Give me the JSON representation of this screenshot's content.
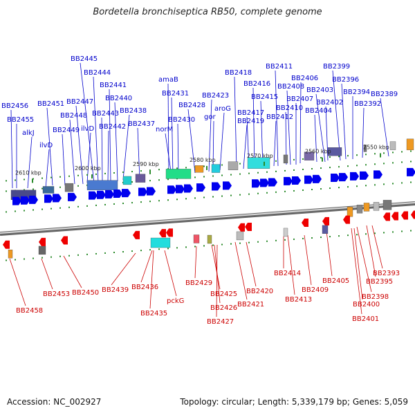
{
  "title": "Bordetella bronchiseptica RB50, complete genome",
  "footer": {
    "accession": "Accession: NC_002927",
    "topology": "Topology: circular; Length: 5,339,179 bp; Genes: 5,059"
  },
  "colors": {
    "top_strand_label": "#0000cc",
    "bottom_strand_label": "#cc0000",
    "top_arrow": "#0000ee",
    "bottom_arrow": "#ee0000",
    "tick": "#2a8a2a",
    "backbone": "#999999"
  },
  "position_markers": [
    "2610 kbp",
    "2600 kbp",
    "2590 kbp",
    "2580 kbp",
    "2570 kbp",
    "2560 kbp",
    "2550 kbp"
  ],
  "top_genes": [
    "BB2456",
    "BB2455",
    "alkJ",
    "ilvD",
    "BB2451",
    "BB2449",
    "BB2448",
    "BB2447",
    "BB2445",
    "BB2444",
    "ilvD",
    "BB2443",
    "BB2442",
    "BB2441",
    "BB2440",
    "BB2438",
    "BB2437",
    "amaB",
    "BB2431",
    "norM",
    "BB2430",
    "BB2428",
    "BB2423",
    "aroG",
    "gor",
    "BB2418",
    "BB2419",
    "BB2417",
    "BB2416",
    "BB2415",
    "BB2412",
    "BB2411",
    "BB2410",
    "BB2408",
    "BB2407",
    "BB2406",
    "BB2404",
    "BB2403",
    "BB2402",
    "BB2399",
    "BB2396",
    "BB2394",
    "BB2392",
    "BB2389"
  ],
  "bottom_genes": [
    "BB2458",
    "BB2453",
    "BB2450",
    "BB2439",
    "BB2436",
    "BB2435",
    "pckG",
    "BB2429",
    "BB2425",
    "BB2426",
    "BB2427",
    "BB2421",
    "BB2420",
    "BB2414",
    "BB2413",
    "BB2409",
    "BB2405",
    "BB2401",
    "BB2400",
    "BB2398",
    "BB2395",
    "BB2393"
  ]
}
